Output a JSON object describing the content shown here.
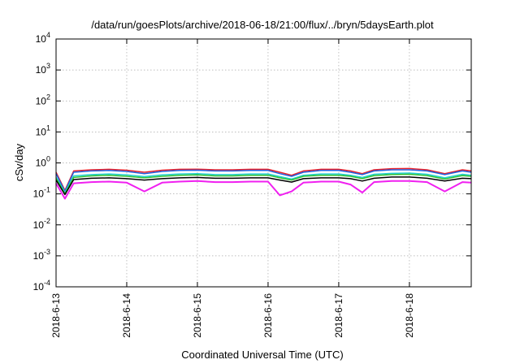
{
  "chart_data": {
    "type": "line",
    "title": "/data/run/goesPlots/archive/2018-06-18/21:00/flux/../bryn/5daysEarth.plot",
    "xlabel": "Coordinated Universal Time (UTC)",
    "ylabel": "cSv/day",
    "y_scale": "log",
    "ylim": [
      0.0001,
      10000
    ],
    "xlim": [
      "2018-06-13T00:00",
      "2018-06-18T21:00"
    ],
    "grid": true,
    "legend": "none",
    "x_ticks": [
      {
        "value": "2018-06-13T00:00",
        "label": "2018-6-13"
      },
      {
        "value": "2018-06-14T00:00",
        "label": "2018-6-14"
      },
      {
        "value": "2018-06-15T00:00",
        "label": "2018-6-15"
      },
      {
        "value": "2018-06-16T00:00",
        "label": "2018-6-16"
      },
      {
        "value": "2018-06-17T00:00",
        "label": "2018-6-17"
      },
      {
        "value": "2018-06-18T00:00",
        "label": "2018-6-18"
      }
    ],
    "y_ticks": [
      {
        "value": 0.0001,
        "base": "10",
        "exp": "-4"
      },
      {
        "value": 0.001,
        "base": "10",
        "exp": "-3"
      },
      {
        "value": 0.01,
        "base": "10",
        "exp": "-2"
      },
      {
        "value": 0.1,
        "base": "10",
        "exp": "-1"
      },
      {
        "value": 1,
        "base": "10",
        "exp": "0"
      },
      {
        "value": 10,
        "base": "10",
        "exp": "1"
      },
      {
        "value": 100,
        "base": "10",
        "exp": "2"
      },
      {
        "value": 1000,
        "base": "10",
        "exp": "3"
      },
      {
        "value": 10000,
        "base": "10",
        "exp": "4"
      }
    ],
    "x": [
      "2018-06-13T00:00",
      "2018-06-13T03:00",
      "2018-06-13T06:00",
      "2018-06-13T12:00",
      "2018-06-13T18:00",
      "2018-06-14T00:00",
      "2018-06-14T06:00",
      "2018-06-14T12:00",
      "2018-06-14T18:00",
      "2018-06-15T00:00",
      "2018-06-15T06:00",
      "2018-06-15T12:00",
      "2018-06-15T18:00",
      "2018-06-16T00:00",
      "2018-06-16T04:00",
      "2018-06-16T08:00",
      "2018-06-16T12:00",
      "2018-06-16T18:00",
      "2018-06-17T00:00",
      "2018-06-17T04:00",
      "2018-06-17T08:00",
      "2018-06-17T12:00",
      "2018-06-17T18:00",
      "2018-06-18T00:00",
      "2018-06-18T06:00",
      "2018-06-18T12:00",
      "2018-06-18T18:00",
      "2018-06-18T21:00"
    ],
    "series": [
      {
        "color": "#e8202a",
        "values": [
          0.5,
          0.13,
          0.55,
          0.6,
          0.62,
          0.58,
          0.5,
          0.58,
          0.62,
          0.63,
          0.6,
          0.6,
          0.62,
          0.62,
          0.5,
          0.4,
          0.55,
          0.62,
          0.62,
          0.55,
          0.45,
          0.6,
          0.65,
          0.66,
          0.6,
          0.45,
          0.6,
          0.55
        ]
      },
      {
        "color": "#2060e0",
        "values": [
          0.45,
          0.12,
          0.5,
          0.55,
          0.57,
          0.53,
          0.45,
          0.53,
          0.57,
          0.58,
          0.55,
          0.55,
          0.57,
          0.57,
          0.45,
          0.37,
          0.5,
          0.57,
          0.57,
          0.5,
          0.42,
          0.55,
          0.6,
          0.6,
          0.55,
          0.42,
          0.55,
          0.5
        ]
      },
      {
        "color": "#20d0d0",
        "values": [
          0.35,
          0.11,
          0.38,
          0.42,
          0.44,
          0.41,
          0.36,
          0.41,
          0.44,
          0.45,
          0.42,
          0.42,
          0.44,
          0.44,
          0.36,
          0.3,
          0.4,
          0.44,
          0.44,
          0.4,
          0.34,
          0.43,
          0.46,
          0.47,
          0.43,
          0.33,
          0.43,
          0.4
        ]
      },
      {
        "color": "#30c030",
        "values": [
          0.32,
          0.1,
          0.34,
          0.38,
          0.4,
          0.37,
          0.33,
          0.37,
          0.4,
          0.41,
          0.38,
          0.38,
          0.4,
          0.4,
          0.33,
          0.28,
          0.37,
          0.4,
          0.4,
          0.37,
          0.31,
          0.39,
          0.42,
          0.43,
          0.39,
          0.3,
          0.39,
          0.37
        ]
      },
      {
        "color": "#000000",
        "values": [
          0.28,
          0.095,
          0.29,
          0.32,
          0.33,
          0.31,
          0.28,
          0.31,
          0.33,
          0.34,
          0.32,
          0.32,
          0.33,
          0.33,
          0.28,
          0.24,
          0.31,
          0.33,
          0.33,
          0.31,
          0.26,
          0.32,
          0.35,
          0.35,
          0.32,
          0.26,
          0.32,
          0.31
        ]
      },
      {
        "color": "#f020f0",
        "values": [
          0.22,
          0.07,
          0.22,
          0.24,
          0.25,
          0.23,
          0.12,
          0.23,
          0.25,
          0.26,
          0.24,
          0.24,
          0.25,
          0.25,
          0.09,
          0.12,
          0.23,
          0.25,
          0.25,
          0.2,
          0.11,
          0.24,
          0.26,
          0.26,
          0.24,
          0.12,
          0.24,
          0.23
        ]
      }
    ]
  }
}
